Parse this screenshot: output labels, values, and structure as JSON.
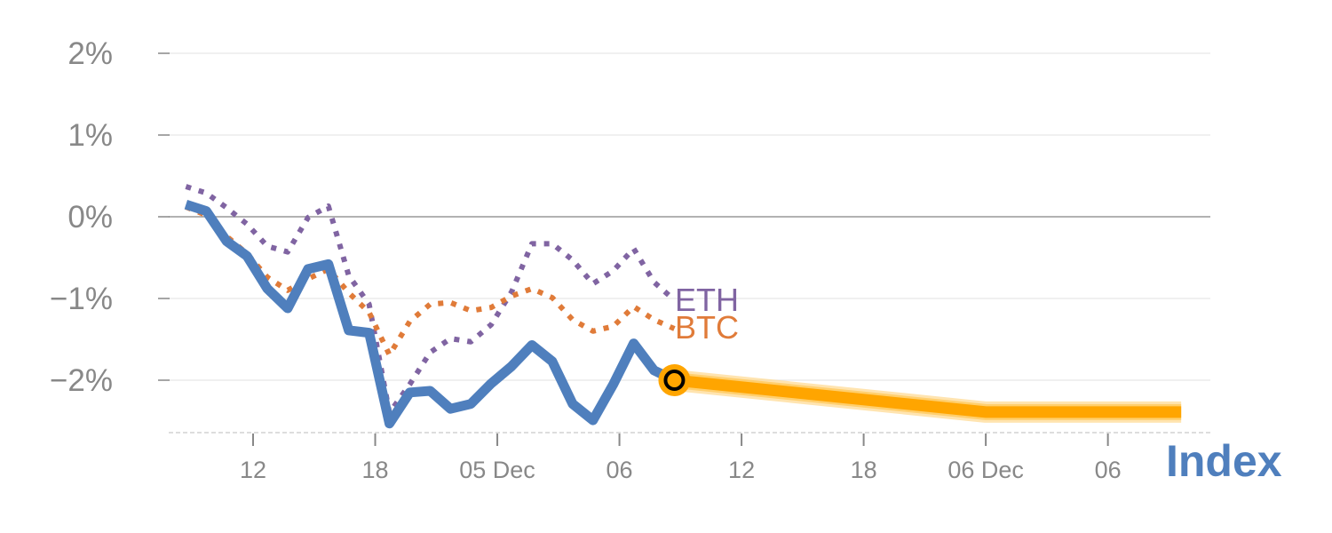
{
  "chart_data": {
    "type": "line",
    "title": "",
    "xlabel": "",
    "ylabel": "",
    "ylim": [
      -2.6,
      2.0
    ],
    "xlim_hours": [
      7.7,
      59.3
    ],
    "x_unit": "hours since 00:00 of first day",
    "y_ticks": [
      {
        "value": 2,
        "label": "2%"
      },
      {
        "value": 1,
        "label": "1%"
      },
      {
        "value": 0,
        "label": "0%"
      },
      {
        "value": -1,
        "label": "−1%"
      },
      {
        "value": -2,
        "label": "−2%"
      }
    ],
    "x_ticks": [
      {
        "value": 12,
        "label": "12"
      },
      {
        "value": 18,
        "label": "18"
      },
      {
        "value": 24,
        "label": "05 Dec"
      },
      {
        "value": 30,
        "label": "06"
      },
      {
        "value": 36,
        "label": "12"
      },
      {
        "value": 42,
        "label": "18"
      },
      {
        "value": 48,
        "label": "06 Dec"
      },
      {
        "value": 54,
        "label": "06"
      }
    ],
    "x_start": 8.7,
    "x_step": 1,
    "series": [
      {
        "name": "ETH",
        "label": "ETH",
        "color": "#8064a2",
        "style": "dotted",
        "values": [
          0.37,
          0.29,
          0.11,
          -0.09,
          -0.36,
          -0.43,
          -0.01,
          0.13,
          -0.72,
          -1.07,
          -2.4,
          -2.05,
          -1.66,
          -1.49,
          -1.53,
          -1.32,
          -0.92,
          -0.33,
          -0.33,
          -0.53,
          -0.82,
          -0.66,
          -0.39,
          -0.8,
          -1.02
        ]
      },
      {
        "name": "BTC",
        "label": "BTC",
        "color": "#e07b39",
        "style": "dotted",
        "values": [
          0.12,
          0.02,
          -0.24,
          -0.45,
          -0.74,
          -0.9,
          -0.76,
          -0.64,
          -0.93,
          -1.17,
          -1.69,
          -1.28,
          -1.07,
          -1.05,
          -1.15,
          -1.11,
          -0.97,
          -0.88,
          -0.99,
          -1.26,
          -1.4,
          -1.34,
          -1.1,
          -1.26,
          -1.37
        ]
      },
      {
        "name": "Index",
        "label": "Index",
        "color": "#4f7fbd",
        "style": "solid",
        "values": [
          0.15,
          0.07,
          -0.3,
          -0.48,
          -0.88,
          -1.12,
          -0.64,
          -0.58,
          -1.39,
          -1.42,
          -2.53,
          -2.15,
          -2.13,
          -2.35,
          -2.29,
          -2.04,
          -1.83,
          -1.57,
          -1.77,
          -2.29,
          -2.49,
          -2.05,
          -1.55,
          -1.88,
          -2.0
        ]
      }
    ],
    "forecast": {
      "name": "Index forecast",
      "color": "#ffa500",
      "points": [
        [
          32.7,
          -2.0
        ],
        [
          48,
          -2.39
        ],
        [
          57.6,
          -2.39
        ]
      ]
    },
    "grid": true,
    "legend": "inline labels at line ends"
  }
}
